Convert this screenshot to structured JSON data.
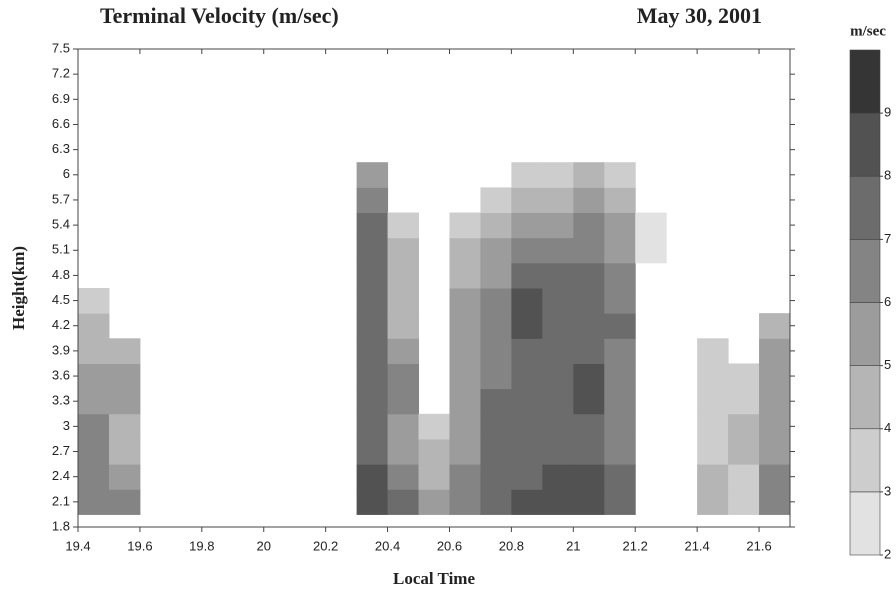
{
  "chart_data": {
    "type": "heatmap",
    "title": "Terminal Velocity (m/sec)",
    "subtitle": "May 30, 2001",
    "x_label": "Local Time",
    "y_label": "Height(km)",
    "colorbar_label": "m/sec",
    "x": [
      19.45,
      19.55,
      19.65,
      19.75,
      19.85,
      19.95,
      20.05,
      20.15,
      20.25,
      20.35,
      20.45,
      20.55,
      20.65,
      20.75,
      20.85,
      20.95,
      21.05,
      21.15,
      21.25,
      21.35,
      21.45,
      21.55,
      21.65
    ],
    "y": [
      2.1,
      2.4,
      2.7,
      3.0,
      3.3,
      3.6,
      3.9,
      4.2,
      4.5,
      4.8,
      5.1,
      5.4,
      5.7,
      6.0
    ],
    "z": [
      [
        6,
        6,
        6,
        6,
        5,
        5,
        4,
        4,
        3,
        null,
        null,
        null,
        null,
        null
      ],
      [
        6,
        5,
        4,
        4,
        5,
        5,
        4,
        null,
        null,
        null,
        null,
        null,
        null,
        null
      ],
      [
        null,
        null,
        null,
        null,
        null,
        null,
        null,
        null,
        null,
        null,
        null,
        null,
        null,
        null
      ],
      [
        null,
        null,
        null,
        null,
        null,
        null,
        null,
        null,
        null,
        null,
        null,
        null,
        null,
        null
      ],
      [
        null,
        null,
        null,
        null,
        null,
        null,
        null,
        null,
        null,
        null,
        null,
        null,
        null,
        null
      ],
      [
        null,
        null,
        null,
        null,
        null,
        null,
        null,
        null,
        null,
        null,
        null,
        null,
        null,
        null
      ],
      [
        null,
        null,
        null,
        null,
        null,
        null,
        null,
        null,
        null,
        null,
        null,
        null,
        null,
        null
      ],
      [
        null,
        null,
        null,
        null,
        null,
        null,
        null,
        null,
        null,
        null,
        null,
        null,
        null,
        null
      ],
      [
        null,
        null,
        null,
        null,
        null,
        null,
        null,
        null,
        null,
        null,
        null,
        null,
        null,
        null
      ],
      [
        8,
        8,
        7,
        7,
        7,
        7,
        7,
        7,
        7,
        7,
        7,
        7,
        6,
        5
      ],
      [
        7,
        6,
        5,
        5,
        6,
        6,
        5,
        4,
        4,
        4,
        4,
        3,
        null,
        null
      ],
      [
        5,
        4,
        4,
        3,
        null,
        null,
        null,
        null,
        null,
        null,
        null,
        null,
        null,
        null
      ],
      [
        6,
        6,
        5,
        5,
        5,
        5,
        5,
        5,
        5,
        4,
        4,
        3,
        null,
        null
      ],
      [
        7,
        7,
        7,
        7,
        7,
        6,
        6,
        6,
        6,
        5,
        5,
        4,
        3,
        null
      ],
      [
        8,
        7,
        7,
        7,
        7,
        7,
        7,
        8,
        8,
        7,
        6,
        5,
        4,
        3
      ],
      [
        8,
        8,
        7,
        7,
        7,
        7,
        7,
        7,
        7,
        7,
        6,
        5,
        4,
        3
      ],
      [
        8,
        8,
        7,
        7,
        8,
        8,
        7,
        7,
        7,
        7,
        6,
        6,
        5,
        4
      ],
      [
        7,
        7,
        6,
        6,
        6,
        6,
        6,
        7,
        6,
        6,
        5,
        5,
        4,
        3
      ],
      [
        null,
        null,
        null,
        null,
        null,
        null,
        null,
        null,
        null,
        null,
        2,
        2,
        null,
        null
      ],
      [
        null,
        null,
        null,
        null,
        null,
        null,
        null,
        null,
        null,
        null,
        null,
        null,
        null,
        null
      ],
      [
        4,
        4,
        3,
        3,
        3,
        3,
        3,
        null,
        null,
        null,
        null,
        null,
        null,
        null
      ],
      [
        3,
        3,
        4,
        4,
        3,
        3,
        null,
        null,
        null,
        null,
        null,
        null,
        null,
        null
      ],
      [
        6,
        6,
        5,
        5,
        5,
        5,
        5,
        4,
        null,
        null,
        null,
        null,
        null,
        null
      ]
    ],
    "xlim": [
      19.4,
      21.7
    ],
    "ylim": [
      1.8,
      7.5
    ],
    "xticks": [
      19.4,
      19.6,
      19.8,
      20,
      20.2,
      20.4,
      20.6,
      20.8,
      21,
      21.2,
      21.4,
      21.6
    ],
    "yticks": [
      1.8,
      2.1,
      2.4,
      2.7,
      3,
      3.3,
      3.6,
      3.9,
      4.2,
      4.5,
      4.8,
      5.1,
      5.4,
      5.7,
      6,
      6.3,
      6.6,
      6.9,
      7.2,
      7.5
    ],
    "clim": [
      2,
      10
    ],
    "cticks": [
      2,
      3,
      4,
      5,
      6,
      7,
      8,
      9
    ],
    "colors": [
      "#e2e2e2",
      "#cdcdcd",
      "#b5b5b5",
      "#9c9c9c",
      "#848484",
      "#6c6c6c",
      "#525252",
      "#353535"
    ]
  }
}
